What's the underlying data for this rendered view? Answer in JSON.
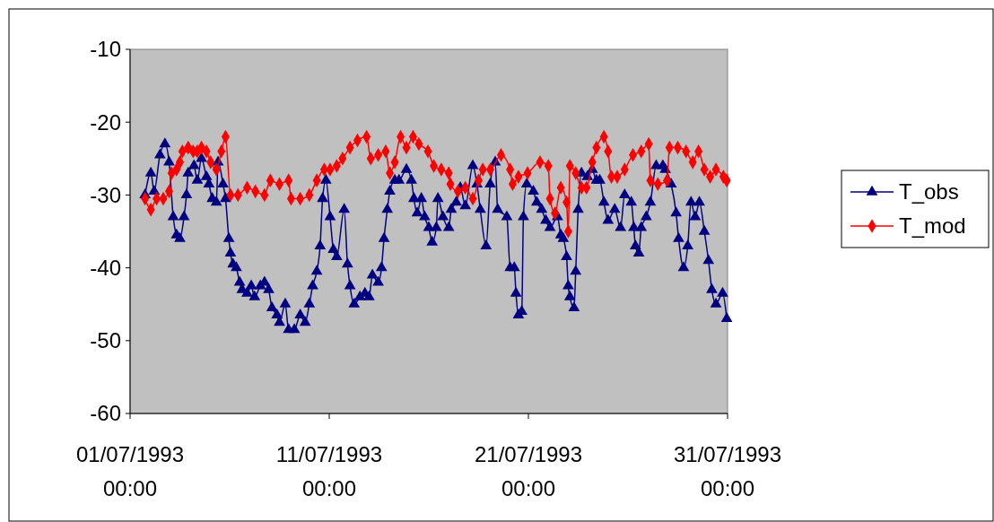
{
  "chart_data": {
    "type": "line",
    "xlim": [
      "1993-07-01T00:00",
      "1993-07-31T00:00"
    ],
    "xticks": [
      {
        "value": "1993-07-01T00:00",
        "label": "01/07/1993\n00:00"
      },
      {
        "value": "1993-07-11T00:00",
        "label": "11/07/1993\n00:00"
      },
      {
        "value": "1993-07-21T00:00",
        "label": "21/07/1993\n00:00"
      },
      {
        "value": "1993-07-31T00:00",
        "label": "31/07/1993\n00:00"
      }
    ],
    "ylim": [
      -60,
      -10
    ],
    "yticks": [
      -60,
      -50,
      -40,
      -30,
      -20,
      -10
    ],
    "grid": false,
    "legend": "right",
    "series": [
      {
        "name": "T_obs",
        "color": "#000080",
        "marker": "triangle",
        "x": [
          "1993-07-01T18:00",
          "1993-07-02T01:00",
          "1993-07-02T05:00",
          "1993-07-02T12:00",
          "1993-07-02T18:00",
          "1993-07-02T23:00",
          "1993-07-03T04:00",
          "1993-07-03T08:00",
          "1993-07-03T12:00",
          "1993-07-03T17:00",
          "1993-07-03T20:00",
          "1993-07-03T22:00",
          "1993-07-04T05:00",
          "1993-07-04T09:00",
          "1993-07-04T14:00",
          "1993-07-04T20:00",
          "1993-07-04T23:00",
          "1993-07-05T03:00",
          "1993-07-05T08:00",
          "1993-07-05T10:00",
          "1993-07-05T16:00",
          "1993-07-05T19:00",
          "1993-07-05T23:00",
          "1993-07-06T01:00",
          "1993-07-06T04:00",
          "1993-07-06T08:00",
          "1993-07-06T12:00",
          "1993-07-06T15:00",
          "1993-07-06T21:00",
          "1993-07-07T02:00",
          "1993-07-07T06:00",
          "1993-07-07T13:00",
          "1993-07-07T18:00",
          "1993-07-07T23:00",
          "1993-07-08T03:00",
          "1993-07-08T09:00",
          "1993-07-08T12:00",
          "1993-07-08T19:00",
          "1993-07-08T23:00",
          "1993-07-09T06:00",
          "1993-07-09T13:00",
          "1993-07-09T19:00",
          "1993-07-10T00:00",
          "1993-07-10T04:00",
          "1993-07-10T09:00",
          "1993-07-10T13:00",
          "1993-07-10T16:00",
          "1993-07-10T20:00",
          "1993-07-11T01:00",
          "1993-07-11T05:00",
          "1993-07-11T09:00",
          "1993-07-11T18:00",
          "1993-07-11T22:00",
          "1993-07-12T01:00",
          "1993-07-12T06:00",
          "1993-07-12T13:00",
          "1993-07-12T19:00",
          "1993-07-13T00:00",
          "1993-07-13T04:00",
          "1993-07-13T11:00",
          "1993-07-13T15:00",
          "1993-07-13T18:00",
          "1993-07-13T22:00",
          "1993-07-14T01:00",
          "1993-07-14T07:00",
          "1993-07-14T12:00",
          "1993-07-14T21:00",
          "1993-07-15T03:00",
          "1993-07-15T06:00",
          "1993-07-15T10:00",
          "1993-07-15T15:00",
          "1993-07-15T19:00",
          "1993-07-16T00:00",
          "1993-07-16T04:00",
          "1993-07-16T09:00",
          "1993-07-16T11:00",
          "1993-07-16T17:00",
          "1993-07-17T00:00",
          "1993-07-17T03:00",
          "1993-07-17T09:00",
          "1993-07-17T14:00",
          "1993-07-17T20:00",
          "1993-07-18T05:00",
          "1993-07-18T10:00",
          "1993-07-18T14:00",
          "1993-07-18T21:00",
          "1993-07-19T02:00",
          "1993-07-19T08:00",
          "1993-07-19T11:00",
          "1993-07-19T22:00",
          "1993-07-20T02:00",
          "1993-07-20T07:00",
          "1993-07-20T09:00",
          "1993-07-20T12:00",
          "1993-07-20T16:00",
          "1993-07-20T18:00",
          "1993-07-20T22:00",
          "1993-07-21T06:00",
          "1993-07-21T10:00",
          "1993-07-21T16:00",
          "1993-07-21T21:00",
          "1993-07-22T02:00",
          "1993-07-22T11:00",
          "1993-07-22T15:00",
          "1993-07-22T18:00",
          "1993-07-22T22:00",
          "1993-07-23T00:00",
          "1993-07-23T02:00",
          "1993-07-23T07:00",
          "1993-07-23T09:00",
          "1993-07-23T12:00",
          "1993-07-23T16:00",
          "1993-07-23T23:00",
          "1993-07-24T05:00",
          "1993-07-24T10:00",
          "1993-07-24T14:00",
          "1993-07-24T19:00",
          "1993-07-25T00:00",
          "1993-07-25T08:00",
          "1993-07-25T15:00",
          "1993-07-25T20:00",
          "1993-07-26T04:00",
          "1993-07-26T07:00",
          "1993-07-26T09:00",
          "1993-07-26T13:00",
          "1993-07-26T16:00",
          "1993-07-26T22:00",
          "1993-07-27T03:00",
          "1993-07-27T10:00",
          "1993-07-27T18:00",
          "1993-07-27T21:00",
          "1993-07-28T04:00",
          "1993-07-28T10:00",
          "1993-07-28T13:00",
          "1993-07-28T19:00",
          "1993-07-29T00:00",
          "1993-07-29T04:00",
          "1993-07-29T09:00",
          "1993-07-29T14:00",
          "1993-07-29T20:00",
          "1993-07-30T01:00",
          "1993-07-30T05:00",
          "1993-07-30T10:00",
          "1993-07-30T18:00",
          "1993-07-30T23:00"
        ],
        "values": [
          -30,
          -27,
          -29.5,
          -24.5,
          -23,
          -25.5,
          -33,
          -35.5,
          -36,
          -33,
          -30,
          -27,
          -26,
          -28,
          -25,
          -27.5,
          -28.5,
          -30.5,
          -31,
          -25.5,
          -28.5,
          -30.5,
          -36,
          -38,
          -39.5,
          -40,
          -42,
          -43,
          -43.5,
          -42.5,
          -44,
          -42.5,
          -42,
          -43,
          -45.5,
          -46.5,
          -47.5,
          -45,
          -48.5,
          -48.5,
          -46.5,
          -47.5,
          -45,
          -42.5,
          -40.5,
          -37,
          -30.5,
          -28,
          -33,
          -37.5,
          -38.5,
          -32,
          -39.5,
          -42.5,
          -45,
          -44,
          -43.5,
          -44,
          -41,
          -42,
          -40,
          -36,
          -32,
          -29.5,
          -28,
          -28,
          -26.5,
          -28,
          -30.5,
          -32.5,
          -30.5,
          -33,
          -34.5,
          -36.5,
          -34.5,
          -30.5,
          -33,
          -34.5,
          -32,
          -31,
          -29,
          -31.5,
          -26,
          -28.5,
          -32,
          -37,
          -28.5,
          -25.5,
          -32,
          -33,
          -40,
          -40,
          -43.5,
          -46.5,
          -46,
          -33,
          -28.5,
          -29.5,
          -31,
          -32,
          -33.5,
          -34.5,
          -33,
          -35.5,
          -36,
          -38.5,
          -42.5,
          -44,
          -45.5,
          -40.5,
          -32,
          -27,
          -27.5,
          -26.5,
          -28,
          -28,
          -31,
          -33.5,
          -32,
          -34.5,
          -30,
          -31,
          -34.5,
          -37,
          -38,
          -34.5,
          -33,
          -31,
          -26,
          -26,
          -26.5,
          -28.5,
          -32.5,
          -36,
          -40,
          -37,
          -31,
          -33,
          -31,
          -35,
          -39,
          -43,
          -45,
          -43.5,
          -47
        ]
      },
      {
        "name": "T_mod",
        "color": "#ff0000",
        "marker": "diamond",
        "x": [
          "1993-07-01T18:00",
          "1993-07-02T01:00",
          "1993-07-02T08:00",
          "1993-07-02T16:00",
          "1993-07-02T23:00",
          "1993-07-03T02:00",
          "1993-07-03T08:00",
          "1993-07-03T12:00",
          "1993-07-03T15:00",
          "1993-07-03T22:00",
          "1993-07-04T04:00",
          "1993-07-04T09:00",
          "1993-07-04T14:00",
          "1993-07-04T20:00",
          "1993-07-05T01:00",
          "1993-07-05T08:00",
          "1993-07-05T14:00",
          "1993-07-05T19:00",
          "1993-07-06T01:00",
          "1993-07-06T10:00",
          "1993-07-06T21:00",
          "1993-07-07T07:00",
          "1993-07-07T18:00",
          "1993-07-08T01:00",
          "1993-07-08T12:00",
          "1993-07-08T23:00",
          "1993-07-09T02:00",
          "1993-07-09T13:00",
          "1993-07-10T00:00",
          "1993-07-10T09:00",
          "1993-07-10T18:00",
          "1993-07-11T01:00",
          "1993-07-11T09:00",
          "1993-07-11T16:00",
          "1993-07-12T01:00",
          "1993-07-12T10:00",
          "1993-07-12T21:00",
          "1993-07-13T02:00",
          "1993-07-13T11:00",
          "1993-07-13T20:00",
          "1993-07-14T01:00",
          "1993-07-14T07:00",
          "1993-07-14T14:00",
          "1993-07-14T21:00",
          "1993-07-15T05:00",
          "1993-07-15T12:00",
          "1993-07-15T23:00",
          "1993-07-16T06:00",
          "1993-07-16T15:00",
          "1993-07-17T00:00",
          "1993-07-17T02:00",
          "1993-07-17T11:00",
          "1993-07-17T20:00",
          "1993-07-18T05:00",
          "1993-07-18T12:00",
          "1993-07-18T17:00",
          "1993-07-19T02:00",
          "1993-07-19T15:00",
          "1993-07-20T02:00",
          "1993-07-20T05:00",
          "1993-07-20T12:00",
          "1993-07-20T23:00",
          "1993-07-21T14:00",
          "1993-07-22T00:00",
          "1993-07-22T02:00",
          "1993-07-22T08:00",
          "1993-07-22T15:00",
          "1993-07-22T22:00",
          "1993-07-23T00:00",
          "1993-07-23T02:00",
          "1993-07-23T09:00",
          "1993-07-23T16:00",
          "1993-07-23T22:00",
          "1993-07-24T05:00",
          "1993-07-24T10:00",
          "1993-07-24T19:00",
          "1993-07-25T00:00",
          "1993-07-25T04:00",
          "1993-07-25T11:00",
          "1993-07-25T20:00",
          "1993-07-26T06:00",
          "1993-07-26T16:00",
          "1993-07-27T01:00",
          "1993-07-27T03:00",
          "1993-07-27T12:00",
          "1993-07-27T23:00",
          "1993-07-28T02:00",
          "1993-07-28T12:00",
          "1993-07-28T22:00",
          "1993-07-29T06:00",
          "1993-07-29T13:00",
          "1993-07-29T20:00",
          "1993-07-30T03:00",
          "1993-07-30T10:00",
          "1993-07-30T19:00",
          "1993-07-30T23:00"
        ],
        "values": [
          -30.5,
          -32,
          -30.5,
          -30.5,
          -29.5,
          -27,
          -26.5,
          -25.5,
          -24,
          -23.5,
          -24,
          -24,
          -23.5,
          -24,
          -25.5,
          -26.5,
          -24,
          -22,
          -30,
          -30,
          -29,
          -29.5,
          -30,
          -28,
          -28.5,
          -28,
          -30.5,
          -30.5,
          -30,
          -28,
          -26.5,
          -26.5,
          -26,
          -25,
          -23.5,
          -22.5,
          -22,
          -25,
          -24.5,
          -24,
          -27,
          -25.5,
          -22,
          -23.5,
          -22,
          -23,
          -24,
          -26,
          -26.5,
          -27,
          -28.5,
          -29.5,
          -29,
          -30.5,
          -28,
          -26.5,
          -26.5,
          -24.5,
          -26.5,
          -28.5,
          -27.5,
          -27,
          -25.5,
          -26,
          -30.5,
          -32.5,
          -29,
          -31,
          -35,
          -26,
          -27,
          -29,
          -29,
          -25.5,
          -23.5,
          -22,
          -24,
          -27.5,
          -27.5,
          -26.5,
          -24.5,
          -24,
          -23,
          -28,
          -28.5,
          -28,
          -23.5,
          -23.5,
          -24,
          -25.5,
          -24,
          -26.5,
          -27.5,
          -26.5,
          -27.5,
          -28
        ]
      }
    ]
  }
}
